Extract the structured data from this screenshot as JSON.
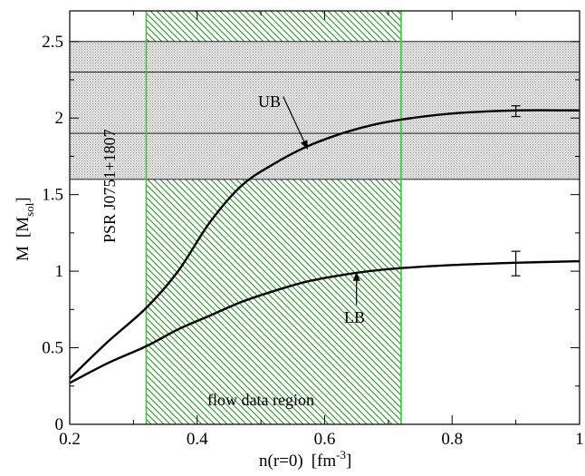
{
  "chart_data": {
    "type": "line",
    "x_axis": {
      "label_main": "n(r=0)",
      "label_unit": "[fm",
      "label_sup": "-3",
      "label_close": "]",
      "lim": [
        0.2,
        1.0
      ],
      "ticks": [
        0.2,
        0.4,
        0.6,
        0.8,
        1.0
      ],
      "tick_labels": [
        "0.2",
        "0.4",
        "0.6",
        "0.8",
        "1"
      ]
    },
    "y_axis": {
      "label_main": "M",
      "label_unit": "[M",
      "label_sub": "sol",
      "label_close": "]",
      "lim": [
        0,
        2.7
      ],
      "ticks": [
        0,
        0.5,
        1.0,
        1.5,
        2.0,
        2.5
      ],
      "tick_labels": [
        "0",
        "0.5",
        "1",
        "1.5",
        "2",
        "2.5"
      ]
    },
    "grid": false,
    "series": [
      {
        "name": "UB",
        "color": "#000000",
        "x": [
          0.2,
          0.26,
          0.32,
          0.37,
          0.42,
          0.47,
          0.52,
          0.57,
          0.62,
          0.67,
          0.72,
          0.8,
          0.9,
          1.0
        ],
        "y": [
          0.3,
          0.54,
          0.76,
          1.0,
          1.32,
          1.56,
          1.7,
          1.81,
          1.89,
          1.95,
          1.99,
          2.03,
          2.05,
          2.05
        ]
      },
      {
        "name": "LB",
        "color": "#000000",
        "x": [
          0.2,
          0.26,
          0.32,
          0.37,
          0.42,
          0.47,
          0.52,
          0.57,
          0.62,
          0.67,
          0.72,
          0.8,
          0.9,
          1.0
        ],
        "y": [
          0.27,
          0.4,
          0.51,
          0.62,
          0.71,
          0.8,
          0.87,
          0.93,
          0.97,
          1.0,
          1.02,
          1.04,
          1.055,
          1.065
        ]
      }
    ],
    "error_bars": [
      {
        "x": 0.9,
        "y": 2.045,
        "low": 2.01,
        "high": 2.08
      },
      {
        "x": 0.9,
        "y": 1.05,
        "low": 0.97,
        "high": 1.13
      }
    ],
    "bands": {
      "psr_box": {
        "y_low": 1.6,
        "y_high": 2.5,
        "extra_lines": [
          2.3,
          1.9
        ],
        "fill": "#d4d4d4"
      },
      "flow_region": {
        "x_low": 0.32,
        "x_high": 0.72,
        "color": "#2e8b2e"
      }
    },
    "annotations": {
      "psr_label": "PSR J0751+1807",
      "ub_label": "UB",
      "lb_label": "LB",
      "flow_label": "flow data region"
    },
    "annotation_anchors": {
      "ub_arrow": {
        "from": [
          0.535,
          2.14
        ],
        "to": [
          0.573,
          1.8
        ]
      },
      "lb_arrow": {
        "from": [
          0.65,
          0.78
        ],
        "to": [
          0.65,
          0.99
        ]
      }
    }
  }
}
